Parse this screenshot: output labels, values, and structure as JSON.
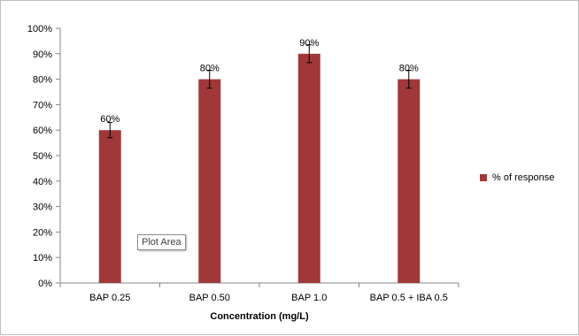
{
  "chart_data": {
    "type": "bar",
    "categories": [
      "BAP 0.25",
      "BAP 0.50",
      "BAP 1.0",
      "BAP 0.5 + IBA 0.5"
    ],
    "series": [
      {
        "name": "% of response",
        "values": [
          60,
          80,
          90,
          80
        ],
        "error": [
          3,
          3.5,
          3.5,
          3.5
        ],
        "data_labels": [
          "60%",
          "80%",
          "90%",
          "80%"
        ],
        "color": "#a0383a"
      }
    ],
    "xlabel": "Concentration (mg/L)",
    "ylabel": "",
    "ylim": [
      0,
      100
    ],
    "yticks": [
      "0%",
      "10%",
      "20%",
      "30%",
      "40%",
      "50%",
      "60%",
      "70%",
      "80%",
      "90%",
      "100%"
    ],
    "grid": false,
    "legend_position": "right"
  },
  "ui": {
    "tooltip_text": "Plot Area"
  }
}
